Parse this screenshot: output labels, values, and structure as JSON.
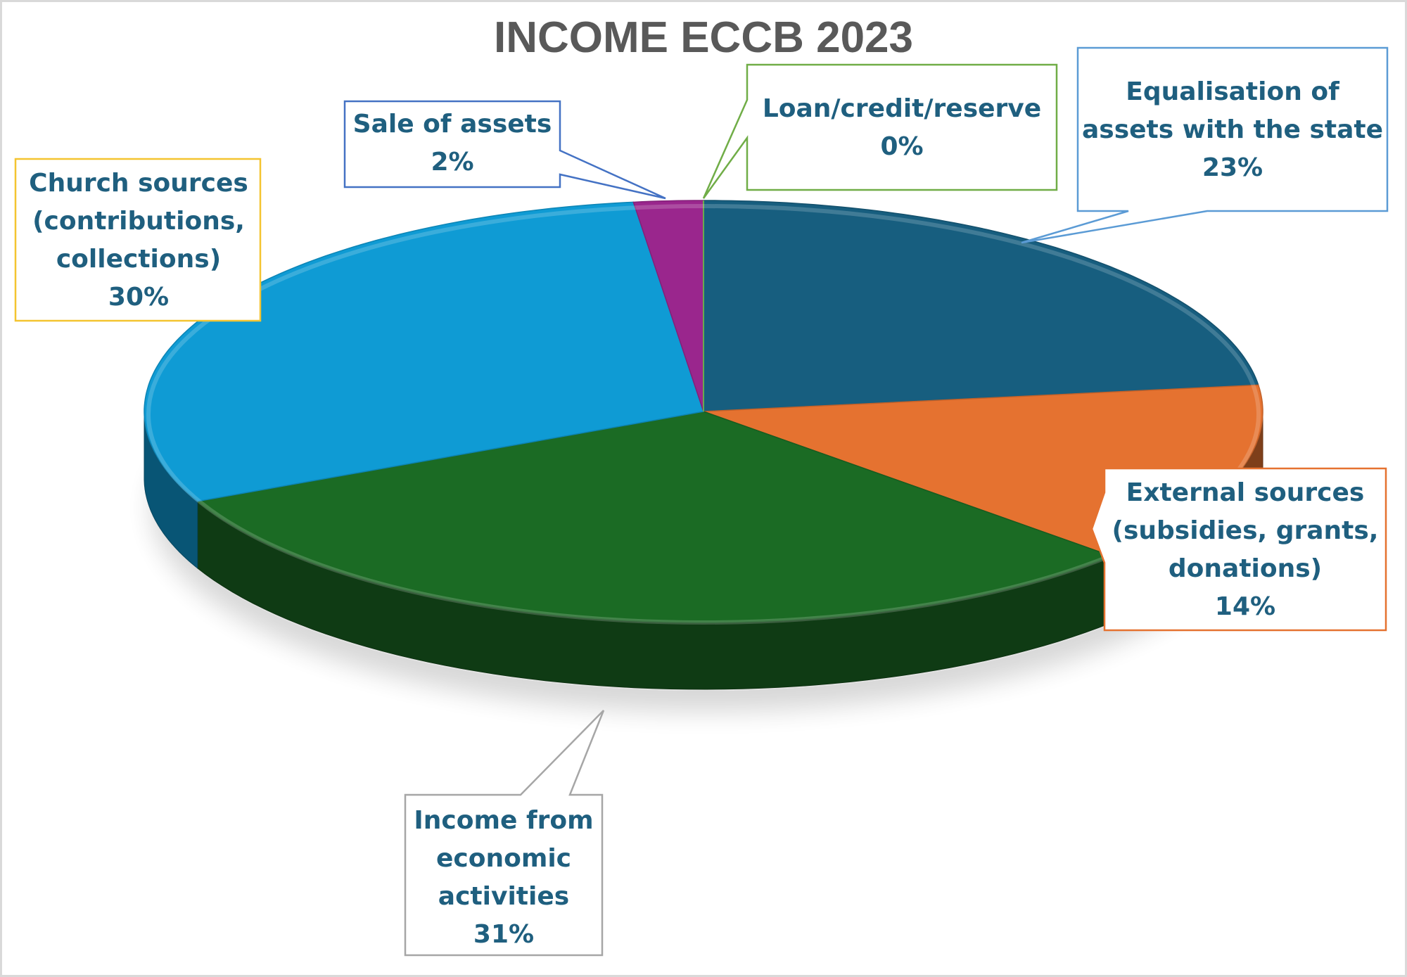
{
  "chart_data": {
    "type": "pie",
    "title": "INCOME ECCB 2023",
    "slices": [
      {
        "label": "Equalisation of assets with the state",
        "value": 23,
        "value_label": "23%",
        "color": "#175e7f"
      },
      {
        "label": "External sources (subsidies, grants, donations)",
        "value": 14,
        "value_label": "14%",
        "color": "#e57230"
      },
      {
        "label": "Income from economic activities",
        "value": 31,
        "value_label": "31%",
        "color": "#1b6b24"
      },
      {
        "label": "Church sources (contributions, collections)",
        "value": 30,
        "value_label": "30%",
        "color": "#0f9bd4"
      },
      {
        "label": "Sale of assets",
        "value": 2,
        "value_label": "2%",
        "color": "#9a268d"
      },
      {
        "label": "Loan/credit/reserve",
        "value": 0,
        "value_label": "0%",
        "color": "#6aa84f"
      }
    ]
  },
  "labels": {
    "equalisation": {
      "lines": [
        "Equalisation of",
        "assets with the state"
      ],
      "pct": "23%",
      "border": "#5b9bd5"
    },
    "external": {
      "lines": [
        "External sources",
        "(subsidies, grants,",
        "donations)"
      ],
      "pct": "14%",
      "border": "#e57230"
    },
    "income": {
      "lines": [
        "Income from",
        "economic",
        "activities"
      ],
      "pct": "31%",
      "border": "#a6a6a6"
    },
    "church": {
      "lines": [
        "Church sources",
        "(contributions,",
        "collections)"
      ],
      "pct": "30%",
      "border": "#f4c430"
    },
    "sale": {
      "lines": [
        "Sale of assets"
      ],
      "pct": "2%",
      "border": "#4472c4"
    },
    "loan": {
      "lines": [
        "Loan/credit/reserve"
      ],
      "pct": "0%",
      "border": "#70ad47"
    }
  }
}
